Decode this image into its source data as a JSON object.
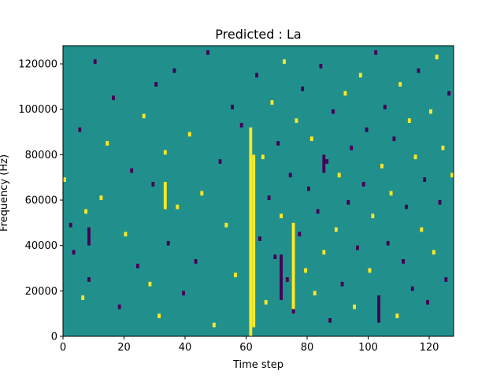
{
  "chart_data": {
    "type": "heatmap",
    "title": "Predicted : La",
    "xlabel": "Time step",
    "ylabel": "Frequency (Hz)",
    "xlim": [
      0,
      128
    ],
    "ylim": [
      0,
      128000
    ],
    "x_ticks": [
      0,
      20,
      40,
      60,
      80,
      100,
      120
    ],
    "y_ticks": [
      0,
      20000,
      40000,
      60000,
      80000,
      100000,
      120000
    ],
    "grid": false,
    "legend": "none",
    "colormap": "viridis",
    "background_color": "#21908d",
    "colors": {
      "low": "#440154",
      "mid": "#21908d",
      "high": "#fde725"
    },
    "time_bins": 128,
    "freq_bins": 64,
    "freq_bin_width_hz": 2000,
    "cells": [
      {
        "t": 0,
        "f": 34,
        "v": "high"
      },
      {
        "t": 2,
        "f": 24,
        "v": "low"
      },
      {
        "t": 3,
        "f": 18,
        "v": "low"
      },
      {
        "t": 5,
        "f": 45,
        "v": "low"
      },
      {
        "t": 6,
        "f": 8,
        "v": "high"
      },
      {
        "t": 7,
        "f": 27,
        "v": "high"
      },
      {
        "t": 8,
        "f": 12,
        "v": "low"
      },
      {
        "t": 10,
        "f": 60,
        "v": "low"
      },
      {
        "t": 12,
        "f": 30,
        "v": "high"
      },
      {
        "t": 14,
        "f": 42,
        "v": "high"
      },
      {
        "t": 16,
        "f": 52,
        "v": "low"
      },
      {
        "t": 18,
        "f": 6,
        "v": "low"
      },
      {
        "t": 20,
        "f": 22,
        "v": "high"
      },
      {
        "t": 22,
        "f": 36,
        "v": "low"
      },
      {
        "t": 24,
        "f": 15,
        "v": "low"
      },
      {
        "t": 26,
        "f": 48,
        "v": "high"
      },
      {
        "t": 28,
        "f": 11,
        "v": "high"
      },
      {
        "t": 29,
        "f": 33,
        "v": "low"
      },
      {
        "t": 30,
        "f": 55,
        "v": "low"
      },
      {
        "t": 31,
        "f": 4,
        "v": "high"
      },
      {
        "t": 33,
        "f": 40,
        "v": "high"
      },
      {
        "t": 34,
        "f": 20,
        "v": "low"
      },
      {
        "t": 36,
        "f": 58,
        "v": "low"
      },
      {
        "t": 37,
        "f": 28,
        "v": "high"
      },
      {
        "t": 39,
        "f": 9,
        "v": "low"
      },
      {
        "t": 41,
        "f": 44,
        "v": "high"
      },
      {
        "t": 43,
        "f": 16,
        "v": "low"
      },
      {
        "t": 45,
        "f": 31,
        "v": "high"
      },
      {
        "t": 47,
        "f": 62,
        "v": "low"
      },
      {
        "t": 49,
        "f": 2,
        "v": "high"
      },
      {
        "t": 51,
        "f": 38,
        "v": "low"
      },
      {
        "t": 53,
        "f": 24,
        "v": "high"
      },
      {
        "t": 55,
        "f": 50,
        "v": "low"
      },
      {
        "t": 56,
        "f": 13,
        "v": "high"
      },
      {
        "t": 58,
        "f": 46,
        "v": "low"
      },
      {
        "t": 63,
        "f": 57,
        "v": "low"
      },
      {
        "t": 64,
        "f": 21,
        "v": "low"
      },
      {
        "t": 65,
        "f": 39,
        "v": "high"
      },
      {
        "t": 66,
        "f": 7,
        "v": "high"
      },
      {
        "t": 67,
        "f": 30,
        "v": "low"
      },
      {
        "t": 68,
        "f": 51,
        "v": "high"
      },
      {
        "t": 69,
        "f": 17,
        "v": "low"
      },
      {
        "t": 70,
        "f": 42,
        "v": "low"
      },
      {
        "t": 71,
        "f": 26,
        "v": "high"
      },
      {
        "t": 72,
        "f": 60,
        "v": "high"
      },
      {
        "t": 73,
        "f": 12,
        "v": "low"
      },
      {
        "t": 74,
        "f": 35,
        "v": "low"
      },
      {
        "t": 75,
        "f": 5,
        "v": "low"
      },
      {
        "t": 76,
        "f": 47,
        "v": "high"
      },
      {
        "t": 77,
        "f": 22,
        "v": "low"
      },
      {
        "t": 78,
        "f": 54,
        "v": "low"
      },
      {
        "t": 79,
        "f": 14,
        "v": "high"
      },
      {
        "t": 80,
        "f": 32,
        "v": "low"
      },
      {
        "t": 81,
        "f": 43,
        "v": "high"
      },
      {
        "t": 82,
        "f": 9,
        "v": "high"
      },
      {
        "t": 83,
        "f": 27,
        "v": "low"
      },
      {
        "t": 84,
        "f": 59,
        "v": "low"
      },
      {
        "t": 85,
        "f": 18,
        "v": "high"
      },
      {
        "t": 86,
        "f": 38,
        "v": "low"
      },
      {
        "t": 87,
        "f": 3,
        "v": "low"
      },
      {
        "t": 88,
        "f": 49,
        "v": "low"
      },
      {
        "t": 89,
        "f": 23,
        "v": "high"
      },
      {
        "t": 90,
        "f": 35,
        "v": "high"
      },
      {
        "t": 91,
        "f": 11,
        "v": "low"
      },
      {
        "t": 92,
        "f": 53,
        "v": "high"
      },
      {
        "t": 93,
        "f": 29,
        "v": "low"
      },
      {
        "t": 94,
        "f": 41,
        "v": "low"
      },
      {
        "t": 95,
        "f": 6,
        "v": "high"
      },
      {
        "t": 96,
        "f": 19,
        "v": "low"
      },
      {
        "t": 97,
        "f": 57,
        "v": "high"
      },
      {
        "t": 98,
        "f": 33,
        "v": "low"
      },
      {
        "t": 99,
        "f": 45,
        "v": "low"
      },
      {
        "t": 100,
        "f": 14,
        "v": "high"
      },
      {
        "t": 101,
        "f": 26,
        "v": "high"
      },
      {
        "t": 102,
        "f": 62,
        "v": "low"
      },
      {
        "t": 103,
        "f": 8,
        "v": "low"
      },
      {
        "t": 104,
        "f": 37,
        "v": "high"
      },
      {
        "t": 105,
        "f": 50,
        "v": "low"
      },
      {
        "t": 106,
        "f": 20,
        "v": "low"
      },
      {
        "t": 107,
        "f": 31,
        "v": "high"
      },
      {
        "t": 108,
        "f": 43,
        "v": "low"
      },
      {
        "t": 109,
        "f": 4,
        "v": "high"
      },
      {
        "t": 110,
        "f": 55,
        "v": "high"
      },
      {
        "t": 111,
        "f": 16,
        "v": "low"
      },
      {
        "t": 112,
        "f": 28,
        "v": "low"
      },
      {
        "t": 113,
        "f": 47,
        "v": "high"
      },
      {
        "t": 114,
        "f": 10,
        "v": "low"
      },
      {
        "t": 115,
        "f": 39,
        "v": "high"
      },
      {
        "t": 116,
        "f": 58,
        "v": "low"
      },
      {
        "t": 117,
        "f": 23,
        "v": "high"
      },
      {
        "t": 118,
        "f": 34,
        "v": "low"
      },
      {
        "t": 119,
        "f": 7,
        "v": "low"
      },
      {
        "t": 120,
        "f": 49,
        "v": "high"
      },
      {
        "t": 121,
        "f": 18,
        "v": "high"
      },
      {
        "t": 122,
        "f": 61,
        "v": "high"
      },
      {
        "t": 123,
        "f": 29,
        "v": "low"
      },
      {
        "t": 124,
        "f": 41,
        "v": "high"
      },
      {
        "t": 125,
        "f": 12,
        "v": "low"
      },
      {
        "t": 126,
        "f": 53,
        "v": "low"
      },
      {
        "t": 127,
        "f": 35,
        "v": "high"
      }
    ],
    "bands": [
      {
        "t_start": 61,
        "t_end": 62,
        "f_start": 0,
        "f_end": 46,
        "v": "high"
      },
      {
        "t_start": 62,
        "t_end": 63,
        "f_start": 2,
        "f_end": 40,
        "v": "high"
      },
      {
        "t_start": 75,
        "t_end": 76,
        "f_start": 5,
        "f_end": 25,
        "v": "high"
      },
      {
        "t_start": 33,
        "t_end": 34,
        "f_start": 28,
        "f_end": 34,
        "v": "high"
      },
      {
        "t_start": 8,
        "t_end": 9,
        "f_start": 20,
        "f_end": 24,
        "v": "low"
      },
      {
        "t_start": 71,
        "t_end": 72,
        "f_start": 8,
        "f_end": 18,
        "v": "low"
      },
      {
        "t_start": 85,
        "t_end": 86,
        "f_start": 36,
        "f_end": 40,
        "v": "low"
      },
      {
        "t_start": 103,
        "t_end": 104,
        "f_start": 3,
        "f_end": 8,
        "v": "low"
      }
    ]
  }
}
